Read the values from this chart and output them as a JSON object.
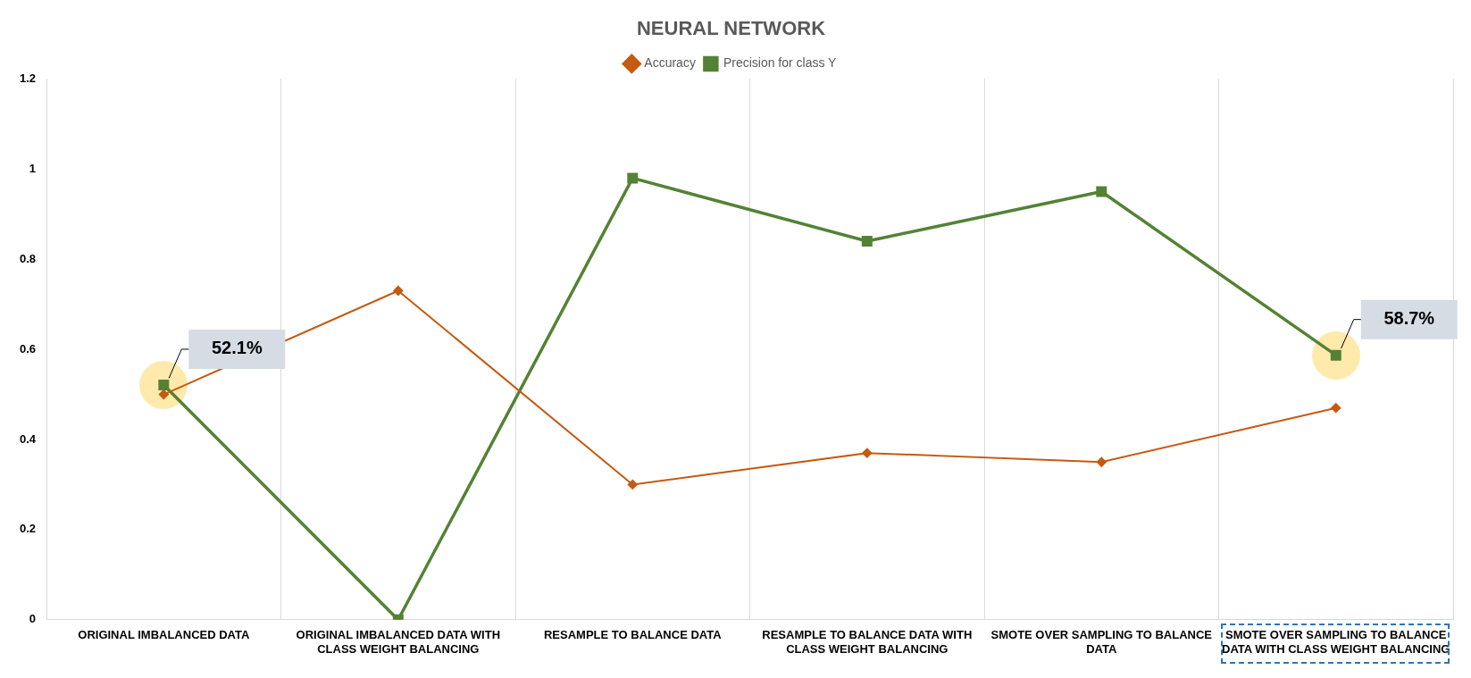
{
  "chart_data": {
    "type": "line",
    "title": "NEURAL NETWORK",
    "categories": [
      "ORIGINAL IMBALANCED DATA",
      "ORIGINAL IMBALANCED DATA WITH CLASS WEIGHT BALANCING",
      "RESAMPLE TO BALANCE DATA",
      "RESAMPLE TO BALANCE DATA WITH CLASS WEIGHT BALANCING",
      "SMOTE OVER SAMPLING TO BALANCE DATA",
      "SMOTE OVER SAMPLING TO BALANCE DATA WITH CLASS WEIGHT BALANCING"
    ],
    "series": [
      {
        "name": "Accuracy",
        "color": "#c55a11",
        "marker": "diamond",
        "values": [
          0.5,
          0.73,
          0.3,
          0.37,
          0.35,
          0.47
        ]
      },
      {
        "name": "Precision for class Y",
        "color": "#548235",
        "marker": "square",
        "values": [
          0.521,
          0,
          0.98,
          0.84,
          0.95,
          0.587
        ],
        "value_labels": [
          "52.1%",
          null,
          null,
          null,
          null,
          "58.7%"
        ]
      }
    ],
    "ylim": [
      0,
      1.2
    ],
    "yticks": [
      0,
      0.2,
      0.4,
      0.6,
      0.8,
      1,
      1.2
    ],
    "grid": "x",
    "legend": "top"
  }
}
